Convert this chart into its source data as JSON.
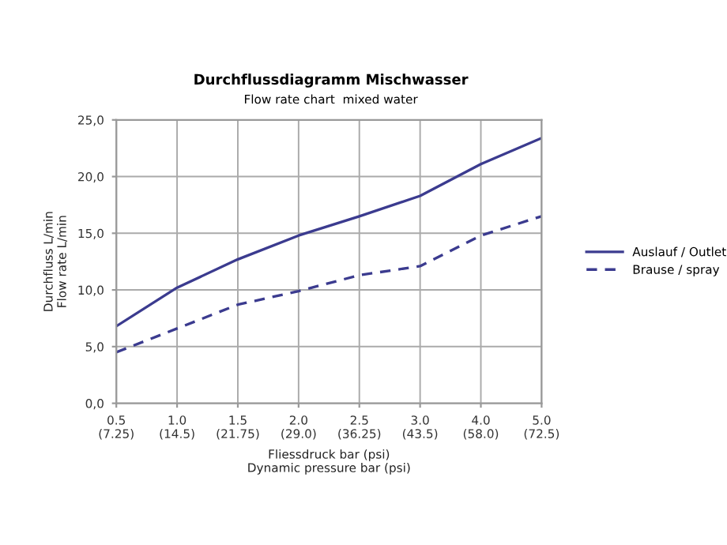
{
  "chart_data": {
    "type": "line",
    "title": "Durchflussdiagramm Mischwasser",
    "subtitle": "Flow rate chart  mixed water",
    "xlabel": "Fliessdruck bar (psi)\nDynamic pressure bar (psi)",
    "ylabel": "Durchfluss L/min\nFlow rate L/min",
    "categories": [
      "0.5\n(7.25)",
      "1.0\n(14.5)",
      "1.5\n(21.75)",
      "2.0\n(29.0)",
      "2.5\n(36.25)",
      "3.0\n(43.5)",
      "4.0\n(58.0)",
      "5.0\n(72.5)"
    ],
    "series": [
      {
        "name": "Auslauf / Outlet",
        "color": "#3b3b8f",
        "line_style": "solid",
        "values": [
          6.8,
          10.2,
          12.7,
          14.8,
          16.5,
          18.3,
          21.1,
          23.4
        ]
      },
      {
        "name": "Brause / spray",
        "color": "#3b3b8f",
        "line_style": "dashed",
        "values": [
          4.5,
          6.6,
          8.7,
          9.9,
          11.3,
          12.1,
          14.8,
          16.5
        ]
      }
    ],
    "ylim": [
      0,
      25
    ],
    "yticks": [
      {
        "value": 0,
        "label": "0,0"
      },
      {
        "value": 5,
        "label": "5,0"
      },
      {
        "value": 10,
        "label": "10,0"
      },
      {
        "value": 15,
        "label": "15,0"
      },
      {
        "value": 20,
        "label": "20,0"
      },
      {
        "value": 25,
        "label": "25,0"
      }
    ],
    "grid": true,
    "legend": "right",
    "marker": "none"
  }
}
